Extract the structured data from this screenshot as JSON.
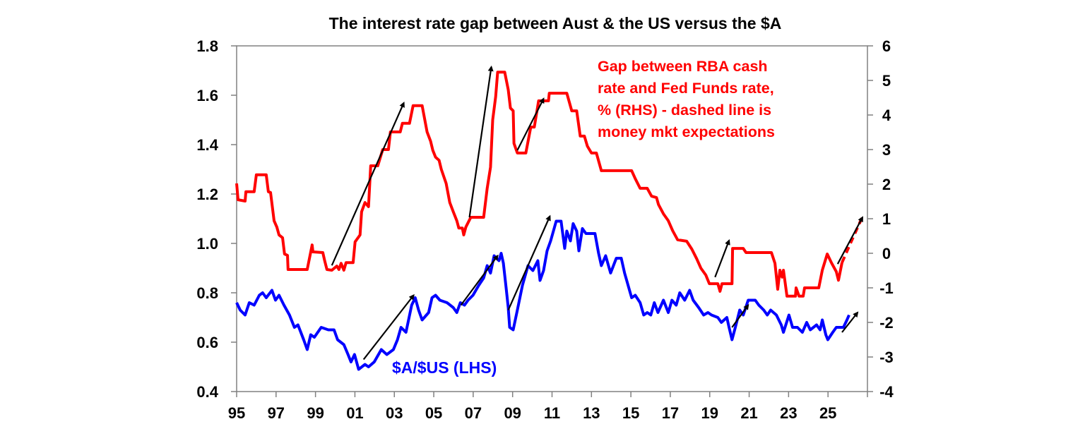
{
  "chart_data": {
    "type": "line",
    "title": "The interest rate gap between Aust & the US versus the $A",
    "x_tick_labels": [
      "95",
      "97",
      "99",
      "01",
      "03",
      "05",
      "07",
      "09",
      "11",
      "13",
      "15",
      "17",
      "19",
      "21",
      "23",
      "25"
    ],
    "x_ticks_years": [
      1995,
      1997,
      1999,
      2001,
      2003,
      2005,
      2007,
      2009,
      2011,
      2013,
      2015,
      2017,
      2019,
      2021,
      2023,
      2025
    ],
    "xlim": [
      1995,
      2027
    ],
    "y_left": {
      "ylim": [
        0.4,
        1.8
      ],
      "tick_labels": [
        "1.8",
        "1.6",
        "1.4",
        "1.2",
        "1.0",
        "0.8",
        "0.6",
        "0.4"
      ],
      "ticks": [
        1.8,
        1.6,
        1.4,
        1.2,
        1.0,
        0.8,
        0.6,
        0.4
      ]
    },
    "y_right": {
      "ylim": [
        -4,
        6
      ],
      "tick_labels": [
        "6",
        "5",
        "4",
        "3",
        "2",
        "1",
        "0",
        "-1",
        "-2",
        "-3",
        "-4"
      ],
      "ticks": [
        6,
        5,
        4,
        3,
        2,
        1,
        0,
        -1,
        -2,
        -3,
        -4
      ]
    },
    "grid": false,
    "annotations": {
      "gap_label": [
        "Gap between RBA cash",
        "rate and Fed Funds rate,",
        "% (RHS) - dashed line is",
        "money mkt expectations"
      ],
      "aud_label": "$A/$US (LHS)"
    },
    "series": [
      {
        "name": "Gap between RBA cash rate and Fed Funds rate, % (RHS)",
        "axis": "right",
        "color": "#ff0000",
        "x": [
          1995.0,
          1995.07,
          1995.43,
          1995.47,
          1995.89,
          1996.0,
          1996.5,
          1996.61,
          1996.72,
          1996.9,
          1997.04,
          1997.15,
          1997.33,
          1997.43,
          1997.58,
          1997.61,
          1998.58,
          1998.83,
          1998.87,
          1999.37,
          1999.47,
          1999.58,
          1999.83,
          2000.08,
          2000.19,
          2000.3,
          2000.44,
          2000.55,
          2000.91,
          2001.01,
          2001.26,
          2001.34,
          2001.51,
          2001.69,
          2001.8,
          2002.16,
          2002.41,
          2002.7,
          2002.8,
          2003.3,
          2003.41,
          2003.77,
          2003.95,
          2004.41,
          2004.66,
          2004.84,
          2004.95,
          2005.09,
          2005.27,
          2005.38,
          2005.63,
          2005.81,
          2005.99,
          2006.17,
          2006.27,
          2006.45,
          2006.52,
          2006.63,
          2006.88,
          2007.53,
          2007.71,
          2007.88,
          2007.99,
          2008.14,
          2008.24,
          2008.6,
          2008.78,
          2008.89,
          2009.03,
          2009.07,
          2009.24,
          2009.67,
          2009.92,
          2010.1,
          2010.32,
          2010.82,
          2010.86,
          2011.75,
          2012.0,
          2012.25,
          2012.43,
          2012.64,
          2012.79,
          2013.0,
          2013.25,
          2013.5,
          2015.04,
          2015.22,
          2015.47,
          2015.83,
          2016.05,
          2016.3,
          2016.4,
          2016.65,
          2016.9,
          2017.12,
          2017.37,
          2017.83,
          2018.09,
          2018.34,
          2018.55,
          2018.8,
          2018.98,
          2019.41,
          2019.52,
          2019.62,
          2020.13,
          2020.16,
          2020.7,
          2020.84,
          2022.13,
          2022.31,
          2022.45,
          2022.56,
          2022.67,
          2022.74,
          2022.92,
          2023.35,
          2023.38,
          2023.53,
          2023.74,
          2023.81,
          2024.53,
          2024.71,
          2024.96,
          2025.17,
          2025.42,
          2025.53,
          2025.71
        ],
        "values": [
          2.02,
          1.55,
          1.51,
          1.78,
          1.78,
          2.27,
          2.27,
          1.78,
          1.76,
          0.94,
          0.76,
          0.53,
          0.45,
          -0.02,
          -0.06,
          -0.47,
          -0.47,
          0.24,
          0.04,
          0.02,
          -0.22,
          -0.47,
          -0.49,
          -0.37,
          -0.47,
          -0.29,
          -0.49,
          -0.27,
          -0.27,
          0.33,
          0.53,
          1.2,
          1.47,
          1.35,
          2.53,
          2.53,
          3.0,
          3.0,
          3.51,
          3.51,
          3.76,
          3.76,
          4.27,
          4.27,
          3.51,
          3.24,
          2.98,
          2.78,
          2.69,
          2.43,
          2.02,
          1.47,
          1.2,
          0.94,
          0.73,
          0.73,
          0.53,
          0.76,
          1.04,
          1.04,
          1.88,
          2.49,
          3.86,
          4.53,
          5.24,
          5.24,
          4.73,
          4.2,
          4.12,
          3.18,
          2.9,
          2.9,
          3.65,
          3.65,
          4.41,
          4.41,
          4.63,
          4.63,
          4.12,
          4.12,
          3.39,
          3.39,
          3.1,
          2.9,
          2.9,
          2.39,
          2.39,
          2.16,
          1.88,
          1.88,
          1.65,
          1.61,
          1.41,
          1.14,
          0.94,
          0.65,
          0.39,
          0.35,
          0.12,
          -0.16,
          -0.43,
          -0.63,
          -0.88,
          -0.88,
          -1.1,
          -0.88,
          -0.88,
          0.14,
          0.14,
          0.02,
          0.02,
          -0.29,
          -1.04,
          -0.49,
          -0.69,
          -0.49,
          -1.24,
          -1.24,
          -1.0,
          -1.24,
          -1.24,
          -1.0,
          -1.0,
          -0.49,
          -0.02,
          -0.27,
          -0.53,
          -0.78,
          -0.27
        ]
      },
      {
        "name": "money mkt expectations",
        "axis": "right",
        "color": "#ff0000",
        "dashed": true,
        "x": [
          2025.71,
          2026.14,
          2026.75
        ],
        "values": [
          -0.27,
          0.29,
          1.06
        ]
      },
      {
        "name": "$A/$US (LHS)",
        "axis": "left",
        "color": "#0000ff",
        "x": [
          1995.0,
          1995.18,
          1995.43,
          1995.64,
          1995.89,
          1996.15,
          1996.32,
          1996.5,
          1996.79,
          1996.97,
          1997.15,
          1997.4,
          1997.68,
          1997.93,
          1998.11,
          1998.4,
          1998.58,
          1998.76,
          1998.94,
          1999.29,
          1999.65,
          1999.94,
          2000.12,
          2000.44,
          2000.65,
          2000.8,
          2000.98,
          2001.19,
          2001.51,
          2001.69,
          2001.98,
          2002.34,
          2002.62,
          2002.95,
          2003.16,
          2003.34,
          2003.59,
          2003.88,
          2004.06,
          2004.23,
          2004.41,
          2004.74,
          2004.91,
          2005.09,
          2005.31,
          2005.67,
          2005.99,
          2006.17,
          2006.35,
          2006.56,
          2006.74,
          2006.99,
          2007.28,
          2007.53,
          2007.71,
          2007.88,
          2008.06,
          2008.31,
          2008.42,
          2008.53,
          2008.67,
          2008.78,
          2008.85,
          2009.03,
          2009.24,
          2009.5,
          2009.78,
          2010.03,
          2010.28,
          2010.39,
          2010.57,
          2010.75,
          2010.93,
          2011.21,
          2011.46,
          2011.64,
          2011.75,
          2011.93,
          2012.07,
          2012.25,
          2012.36,
          2012.54,
          2012.72,
          2013.18,
          2013.36,
          2013.5,
          2013.72,
          2013.97,
          2014.26,
          2014.51,
          2014.68,
          2014.86,
          2015.04,
          2015.22,
          2015.47,
          2015.65,
          2015.83,
          2016.01,
          2016.19,
          2016.37,
          2016.65,
          2016.9,
          2017.08,
          2017.3,
          2017.48,
          2017.73,
          2017.98,
          2018.16,
          2018.44,
          2018.69,
          2018.91,
          2019.09,
          2019.41,
          2019.59,
          2019.87,
          2019.98,
          2020.13,
          2020.3,
          2020.52,
          2020.7,
          2020.95,
          2021.31,
          2021.49,
          2021.74,
          2021.92,
          2022.09,
          2022.38,
          2022.63,
          2022.74,
          2023.02,
          2023.2,
          2023.45,
          2023.7,
          2023.92,
          2024.1,
          2024.42,
          2024.6,
          2024.71,
          2024.89,
          2024.99,
          2025.24,
          2025.42,
          2025.78,
          2025.96,
          2026.07
        ],
        "values": [
          0.76,
          0.73,
          0.71,
          0.76,
          0.75,
          0.79,
          0.8,
          0.78,
          0.81,
          0.77,
          0.79,
          0.75,
          0.71,
          0.66,
          0.67,
          0.61,
          0.57,
          0.63,
          0.62,
          0.66,
          0.65,
          0.65,
          0.61,
          0.59,
          0.55,
          0.52,
          0.55,
          0.49,
          0.51,
          0.5,
          0.52,
          0.57,
          0.55,
          0.57,
          0.61,
          0.66,
          0.64,
          0.75,
          0.78,
          0.73,
          0.69,
          0.72,
          0.78,
          0.79,
          0.77,
          0.76,
          0.74,
          0.72,
          0.76,
          0.75,
          0.77,
          0.79,
          0.83,
          0.86,
          0.91,
          0.88,
          0.95,
          0.93,
          0.96,
          0.92,
          0.82,
          0.74,
          0.66,
          0.65,
          0.73,
          0.83,
          0.91,
          0.89,
          0.93,
          0.85,
          0.89,
          0.97,
          1.01,
          1.09,
          1.09,
          0.98,
          1.05,
          1.01,
          1.08,
          1.05,
          0.97,
          1.06,
          1.04,
          1.04,
          0.96,
          0.91,
          0.95,
          0.88,
          0.94,
          0.94,
          0.88,
          0.83,
          0.78,
          0.79,
          0.76,
          0.71,
          0.72,
          0.71,
          0.76,
          0.72,
          0.77,
          0.72,
          0.77,
          0.75,
          0.8,
          0.77,
          0.81,
          0.77,
          0.74,
          0.71,
          0.72,
          0.71,
          0.7,
          0.68,
          0.7,
          0.66,
          0.61,
          0.66,
          0.73,
          0.71,
          0.77,
          0.77,
          0.75,
          0.73,
          0.71,
          0.73,
          0.71,
          0.67,
          0.64,
          0.71,
          0.66,
          0.66,
          0.64,
          0.68,
          0.65,
          0.67,
          0.65,
          0.69,
          0.63,
          0.61,
          0.64,
          0.66,
          0.66,
          0.69,
          0.71
        ]
      }
    ],
    "arrows": [
      {
        "axis": "right",
        "from": [
          1999.83,
          -0.35
        ],
        "to": [
          2003.48,
          4.35
        ]
      },
      {
        "axis": "right",
        "from": [
          2006.81,
          1.04
        ],
        "to": [
          2007.92,
          5.39
        ]
      },
      {
        "axis": "right",
        "from": [
          2009.24,
          2.98
        ],
        "to": [
          2010.57,
          4.47
        ]
      },
      {
        "axis": "right",
        "from": [
          2019.27,
          -0.69
        ],
        "to": [
          2019.98,
          0.37
        ]
      },
      {
        "axis": "right",
        "from": [
          2025.49,
          -0.31
        ],
        "to": [
          2026.75,
          1.04
        ]
      },
      {
        "axis": "left",
        "from": [
          2001.44,
          0.53
        ],
        "to": [
          2003.98,
          0.79
        ]
      },
      {
        "axis": "left",
        "from": [
          2006.38,
          0.75
        ],
        "to": [
          2008.24,
          0.95
        ]
      },
      {
        "axis": "left",
        "from": [
          2008.78,
          0.73
        ],
        "to": [
          2010.89,
          1.11
        ]
      },
      {
        "axis": "left",
        "from": [
          2020.13,
          0.66
        ],
        "to": [
          2020.95,
          0.75
        ]
      },
      {
        "axis": "left",
        "from": [
          2025.71,
          0.64
        ],
        "to": [
          2026.5,
          0.72
        ]
      }
    ]
  }
}
